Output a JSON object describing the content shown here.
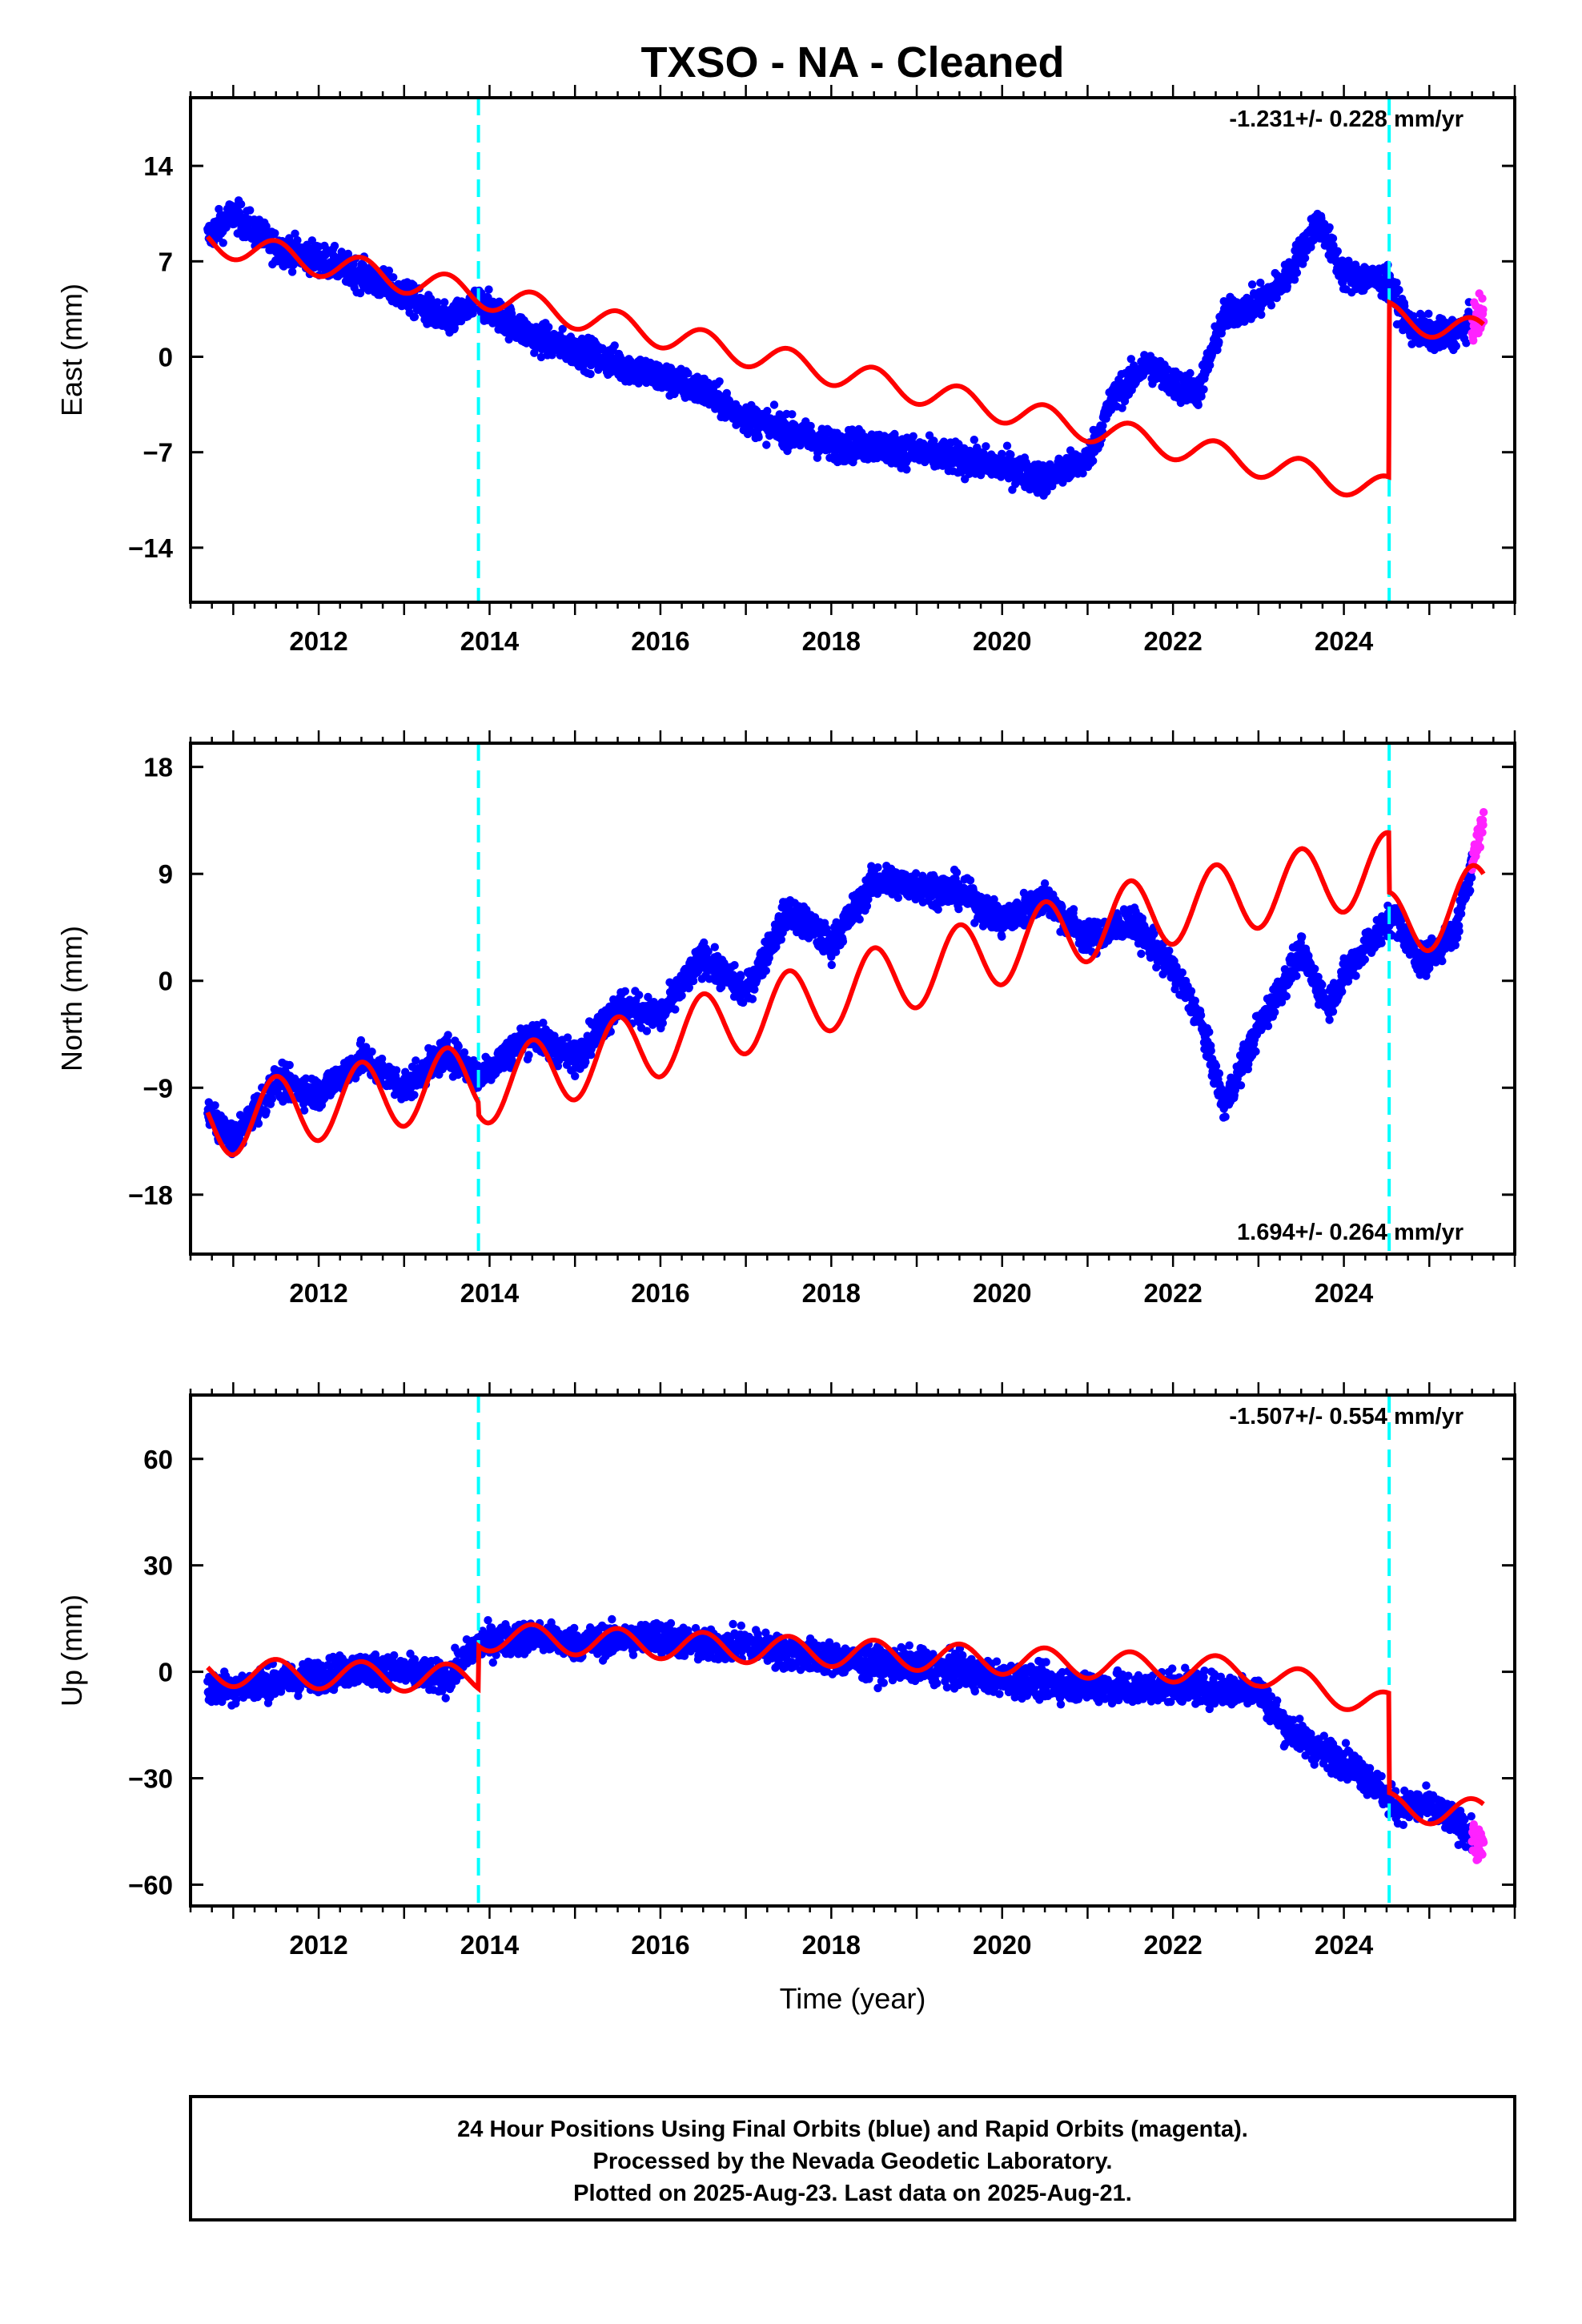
{
  "title": "TXSO  - NA - Cleaned",
  "colors": {
    "final_orbits": "#0000ff",
    "rapid_orbits": "#ff22ff",
    "model": "#ff0000",
    "offset_line": "#00ffff"
  },
  "chart_data": [
    {
      "type": "scatter",
      "ylabel": "East (mm)",
      "xlim": [
        2010.5,
        2026.0
      ],
      "ylim": [
        -18,
        19
      ],
      "yticks": [
        14,
        7,
        0,
        -7,
        -14
      ],
      "ytick_labels": [
        "14",
        "7",
        "0",
        "−7",
        "−14"
      ],
      "xticks": [
        2012,
        2014,
        2016,
        2018,
        2020,
        2022,
        2024
      ],
      "xtick_labels": [
        "2012",
        "2014",
        "2016",
        "2018",
        "2020",
        "2022",
        "2024"
      ],
      "rate_label": "-1.231+/- 0.228 mm/yr",
      "rate_position": "top-right",
      "offset_epochs": [
        2013.87,
        2024.53
      ],
      "data_span": [
        2010.7,
        2025.64
      ],
      "rapid_span": [
        2025.5,
        2025.64
      ],
      "model": {
        "anchors": [
          [
            2010.7,
            8.5
          ],
          [
            2013.87,
            4.6
          ],
          [
            2013.87,
            4.6
          ],
          [
            2021.2,
            -5.5
          ],
          [
            2024.53,
            -9.8
          ],
          [
            2024.53,
            3.0
          ],
          [
            2025.64,
            1.7
          ]
        ],
        "seasonal_amplitude": 1.0,
        "second_branch": [
          [
            2021.2,
            -5.5
          ],
          [
            2024.53,
            -9.8
          ]
        ]
      },
      "observations": [
        [
          2010.7,
          8.8
        ],
        [
          2011.0,
          10.5
        ],
        [
          2011.5,
          8.0
        ],
        [
          2012.0,
          7.2
        ],
        [
          2012.5,
          6.0
        ],
        [
          2013.0,
          4.5
        ],
        [
          2013.5,
          2.5
        ],
        [
          2013.87,
          4.0
        ],
        [
          2014.5,
          1.5
        ],
        [
          2015.0,
          0.5
        ],
        [
          2015.5,
          -0.5
        ],
        [
          2016.0,
          -1.5
        ],
        [
          2016.5,
          -2.5
        ],
        [
          2017.0,
          -4.5
        ],
        [
          2017.5,
          -5.5
        ],
        [
          2018.0,
          -6.5
        ],
        [
          2018.5,
          -6.5
        ],
        [
          2019.0,
          -7.0
        ],
        [
          2019.5,
          -7.5
        ],
        [
          2020.0,
          -8.0
        ],
        [
          2020.5,
          -9.0
        ],
        [
          2021.0,
          -7.5
        ],
        [
          2021.3,
          -3.0
        ],
        [
          2021.7,
          -0.5
        ],
        [
          2022.0,
          -2.0
        ],
        [
          2022.3,
          -2.5
        ],
        [
          2022.6,
          3.0
        ],
        [
          2023.0,
          4.0
        ],
        [
          2023.3,
          5.5
        ],
        [
          2023.7,
          10.0
        ],
        [
          2024.0,
          6.0
        ],
        [
          2024.5,
          5.5
        ],
        [
          2024.8,
          2.0
        ],
        [
          2025.2,
          1.5
        ],
        [
          2025.64,
          3.0
        ]
      ]
    },
    {
      "type": "scatter",
      "ylabel": "North (mm)",
      "xlim": [
        2010.5,
        2026.0
      ],
      "ylim": [
        -23,
        20
      ],
      "yticks": [
        18,
        9,
        0,
        -9,
        -18
      ],
      "ytick_labels": [
        "18",
        "9",
        "0",
        "−9",
        "−18"
      ],
      "xticks": [
        2012,
        2014,
        2016,
        2018,
        2020,
        2022,
        2024
      ],
      "xtick_labels": [
        "2012",
        "2014",
        "2016",
        "2018",
        "2020",
        "2022",
        "2024"
      ],
      "rate_label": "1.694+/- 0.264 mm/yr",
      "rate_position": "bottom-right",
      "offset_epochs": [
        2013.87,
        2024.53
      ],
      "data_span": [
        2010.7,
        2025.64
      ],
      "rapid_span": [
        2025.5,
        2025.64
      ],
      "model": {
        "anchors": [
          [
            2010.7,
            -12.0
          ],
          [
            2013.87,
            -8.2
          ],
          [
            2013.87,
            -9.2
          ],
          [
            2021.2,
            5.0
          ],
          [
            2024.53,
            9.5
          ],
          [
            2024.53,
            4.5
          ],
          [
            2025.64,
            7.0
          ]
        ],
        "seasonal_amplitude": 3.0,
        "second_branch": [
          [
            2021.2,
            5.0
          ],
          [
            2024.53,
            9.5
          ]
        ]
      },
      "observations": [
        [
          2010.7,
          -11.0
        ],
        [
          2011.0,
          -13.5
        ],
        [
          2011.5,
          -8.5
        ],
        [
          2012.0,
          -9.5
        ],
        [
          2012.5,
          -6.5
        ],
        [
          2013.0,
          -9.0
        ],
        [
          2013.5,
          -6.0
        ],
        [
          2013.87,
          -8.0
        ],
        [
          2014.5,
          -4.5
        ],
        [
          2015.0,
          -6.5
        ],
        [
          2015.5,
          -2.0
        ],
        [
          2016.0,
          -3.0
        ],
        [
          2016.5,
          2.0
        ],
        [
          2017.0,
          -1.0
        ],
        [
          2017.5,
          6.0
        ],
        [
          2018.0,
          3.0
        ],
        [
          2018.5,
          8.5
        ],
        [
          2019.0,
          8.0
        ],
        [
          2019.5,
          7.5
        ],
        [
          2020.0,
          5.0
        ],
        [
          2020.5,
          7.0
        ],
        [
          2021.0,
          3.5
        ],
        [
          2021.5,
          5.0
        ],
        [
          2022.0,
          1.0
        ],
        [
          2022.3,
          -3.0
        ],
        [
          2022.6,
          -10.5
        ],
        [
          2023.0,
          -4.0
        ],
        [
          2023.5,
          2.5
        ],
        [
          2023.8,
          -2.0
        ],
        [
          2024.2,
          2.5
        ],
        [
          2024.6,
          5.5
        ],
        [
          2024.9,
          1.5
        ],
        [
          2025.3,
          4.0
        ],
        [
          2025.64,
          14.0
        ]
      ]
    },
    {
      "type": "scatter",
      "ylabel": "Up (mm)",
      "xlabel": "Time (year)",
      "xlim": [
        2010.5,
        2026.0
      ],
      "ylim": [
        -66,
        78
      ],
      "yticks": [
        60,
        30,
        0,
        -30,
        -60
      ],
      "ytick_labels": [
        "60",
        "30",
        "0",
        "−30",
        "−60"
      ],
      "xticks": [
        2012,
        2014,
        2016,
        2018,
        2020,
        2022,
        2024
      ],
      "xtick_labels": [
        "2012",
        "2014",
        "2016",
        "2018",
        "2020",
        "2022",
        "2024"
      ],
      "rate_label": "-1.507+/- 0.554 mm/yr",
      "rate_position": "top-right",
      "offset_epochs": [
        2013.87,
        2024.53
      ],
      "data_span": [
        2010.7,
        2025.64
      ],
      "rapid_span": [
        2025.5,
        2025.64
      ],
      "model": {
        "anchors": [
          [
            2010.7,
            0.0
          ],
          [
            2013.87,
            -2.0
          ],
          [
            2013.87,
            10.0
          ],
          [
            2023.0,
            0.0
          ],
          [
            2024.53,
            -10.0
          ],
          [
            2024.53,
            -38.0
          ],
          [
            2025.64,
            -40.0
          ]
        ],
        "seasonal_amplitude": 4.0,
        "second_branch": []
      },
      "observations": [
        [
          2010.7,
          -5.0
        ],
        [
          2011.5,
          -3.0
        ],
        [
          2012.0,
          -1.0
        ],
        [
          2012.5,
          1.0
        ],
        [
          2013.0,
          0.0
        ],
        [
          2013.5,
          -2.0
        ],
        [
          2013.87,
          8.0
        ],
        [
          2014.5,
          10.0
        ],
        [
          2015.0,
          8.0
        ],
        [
          2015.5,
          9.0
        ],
        [
          2016.0,
          10.0
        ],
        [
          2016.5,
          7.0
        ],
        [
          2017.0,
          8.0
        ],
        [
          2017.5,
          5.0
        ],
        [
          2018.0,
          4.0
        ],
        [
          2018.5,
          2.0
        ],
        [
          2019.0,
          2.0
        ],
        [
          2019.5,
          0.0
        ],
        [
          2020.0,
          -2.0
        ],
        [
          2020.5,
          -3.0
        ],
        [
          2021.0,
          -4.0
        ],
        [
          2021.5,
          -5.0
        ],
        [
          2022.0,
          -4.0
        ],
        [
          2022.5,
          -5.0
        ],
        [
          2023.0,
          -5.0
        ],
        [
          2023.3,
          -15.0
        ],
        [
          2023.7,
          -22.0
        ],
        [
          2024.0,
          -25.0
        ],
        [
          2024.3,
          -30.0
        ],
        [
          2024.6,
          -38.0
        ],
        [
          2025.0,
          -38.0
        ],
        [
          2025.4,
          -44.0
        ],
        [
          2025.64,
          -50.0
        ]
      ]
    }
  ],
  "footer": {
    "line1": "24 Hour Positions Using Final Orbits (blue) and Rapid Orbits (magenta).",
    "line2": "Processed by the Nevada Geodetic Laboratory.",
    "line3": "Plotted on 2025-Aug-23. Last data on 2025-Aug-21."
  }
}
